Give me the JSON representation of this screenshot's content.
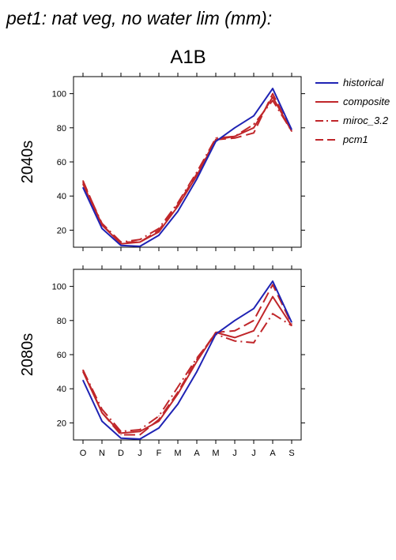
{
  "title": "pet1: nat veg, no water lim (mm):",
  "chart_data": [
    {
      "type": "line",
      "scenario": "A1B",
      "row_label": "2040s",
      "categories": [
        "O",
        "N",
        "D",
        "J",
        "F",
        "M",
        "A",
        "M",
        "J",
        "J",
        "A",
        "S"
      ],
      "ylim": [
        10,
        110
      ],
      "yticks": [
        20,
        40,
        60,
        80,
        100
      ],
      "series": [
        {
          "name": "historical",
          "color": "#1f23b4",
          "dash": "solid",
          "values": [
            45,
            21,
            11,
            10.5,
            17,
            31,
            50,
            72,
            80,
            87,
            103,
            79
          ]
        },
        {
          "name": "composite",
          "color": "#c0262a",
          "dash": "solid",
          "values": [
            47,
            23,
            12,
            13,
            19,
            34,
            52,
            73,
            75,
            80,
            98,
            78
          ]
        },
        {
          "name": "miroc_3.2",
          "color": "#c0262a",
          "dash": "dashdot",
          "values": [
            48,
            24,
            13,
            14.5,
            21,
            36,
            54,
            74,
            75,
            82,
            96,
            78
          ]
        },
        {
          "name": "pcm1",
          "color": "#c0262a",
          "dash": "dashed",
          "values": [
            49,
            23,
            13,
            13,
            20,
            35,
            53,
            73,
            74,
            77,
            100,
            78
          ]
        }
      ]
    },
    {
      "type": "line",
      "row_label": "2080s",
      "categories": [
        "O",
        "N",
        "D",
        "J",
        "F",
        "M",
        "A",
        "M",
        "J",
        "J",
        "A",
        "S"
      ],
      "ylim": [
        10,
        110
      ],
      "yticks": [
        20,
        40,
        60,
        80,
        100
      ],
      "series": [
        {
          "name": "historical",
          "color": "#1f23b4",
          "dash": "solid",
          "values": [
            45,
            21,
            11,
            10.5,
            17,
            31,
            50,
            72,
            80,
            87,
            103,
            79
          ]
        },
        {
          "name": "composite",
          "color": "#c0262a",
          "dash": "solid",
          "values": [
            50,
            26,
            14,
            15,
            21,
            37,
            56,
            73,
            70,
            74,
            94,
            77
          ]
        },
        {
          "name": "miroc_3.2",
          "color": "#c0262a",
          "dash": "dashdot",
          "values": [
            51,
            28,
            15,
            16,
            24,
            41,
            58,
            72,
            68,
            67,
            84,
            77
          ]
        },
        {
          "name": "pcm1",
          "color": "#c0262a",
          "dash": "dashed",
          "values": [
            51,
            26,
            13,
            13,
            22,
            38,
            57,
            73,
            74,
            80,
            101,
            78
          ]
        }
      ]
    }
  ]
}
